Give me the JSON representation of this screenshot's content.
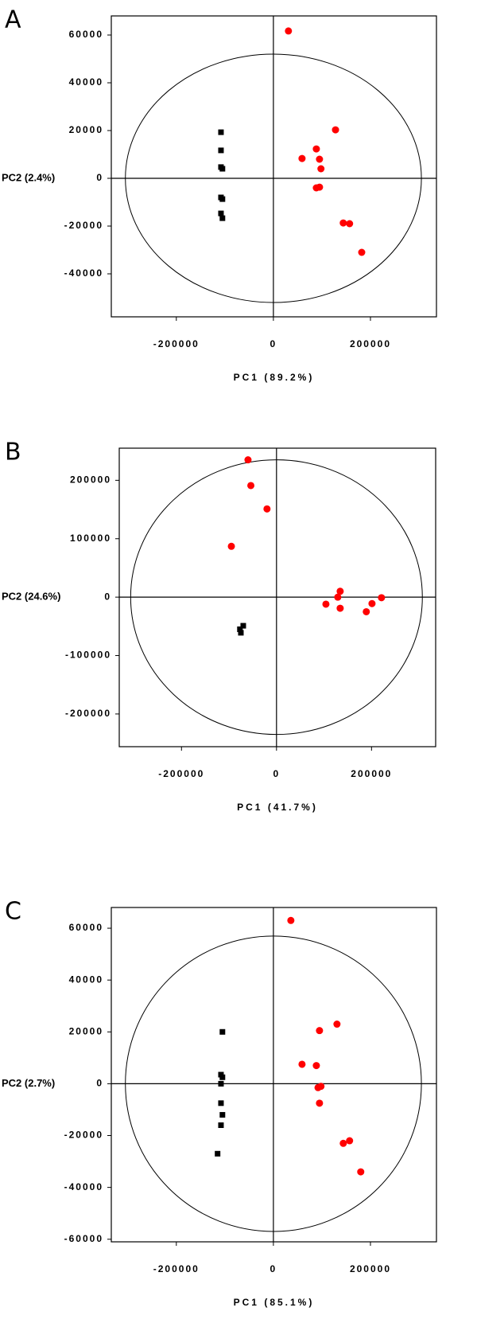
{
  "chart_data": [
    {
      "type": "scatter",
      "panel": "A",
      "xlabel": "PC1 (89.2%)",
      "ylabel": "PC2 (2.4%)",
      "xlim": [
        -334000,
        336000
      ],
      "ylim": [
        -58000,
        68000
      ],
      "xticks": [
        -200000,
        0,
        200000
      ],
      "yticks": [
        -40000,
        -20000,
        0,
        20000,
        40000,
        60000
      ],
      "ellipse": [
        305000,
        52000
      ],
      "series": [
        {
          "color": "#000000",
          "marker": "square",
          "x": [
            -108000,
            -108000,
            -108000,
            -105000,
            -108000,
            -105000,
            -108000,
            -105000
          ],
          "values": [
            19300,
            11700,
            4700,
            4000,
            -8000,
            -8700,
            -14700,
            -16700
          ]
        },
        {
          "color": "#ff0000",
          "marker": "circle",
          "x": [
            31000,
            128000,
            88500,
            59000,
            95000,
            98000,
            88500,
            95000,
            144000,
            157000,
            182000
          ],
          "values": [
            61700,
            20300,
            12300,
            8300,
            8000,
            4000,
            -4000,
            -3700,
            -18700,
            -19000,
            -31000
          ]
        }
      ]
    },
    {
      "type": "scatter",
      "panel": "B",
      "xlabel": "PC1 (41.7%)",
      "ylabel": "PC2 (24.6%)",
      "xlim": [
        -331000,
        335000
      ],
      "ylim": [
        -256000,
        255000
      ],
      "xticks": [
        -200000,
        0,
        200000
      ],
      "yticks": [
        -200000,
        -100000,
        0,
        100000,
        200000
      ],
      "ellipse": [
        307000,
        235000
      ],
      "series": [
        {
          "color": "#000000",
          "marker": "square",
          "x": [
            -70000,
            -77000,
            -75000
          ],
          "values": [
            -49000,
            -55000,
            -61000
          ]
        },
        {
          "color": "#ff0000",
          "marker": "circle",
          "x": [
            -60000,
            -54000,
            -20000,
            -95000,
            134000,
            129000,
            104000,
            134000,
            201000,
            189000,
            221000
          ],
          "values": [
            235000,
            191000,
            151000,
            87000,
            10000,
            0,
            -12000,
            -19000,
            -11000,
            -25000,
            -1000
          ]
        }
      ]
    },
    {
      "type": "scatter",
      "panel": "C",
      "xlabel": "PC1 (85.1%)",
      "ylabel": "PC2 (2.7%)",
      "xlim": [
        -334000,
        336000
      ],
      "ylim": [
        -61000,
        68000
      ],
      "xticks": [
        -200000,
        0,
        200000
      ],
      "yticks": [
        -60000,
        -40000,
        -20000,
        0,
        20000,
        40000,
        60000
      ],
      "ellipse": [
        305000,
        57000
      ],
      "series": [
        {
          "color": "#000000",
          "marker": "square",
          "x": [
            -105000,
            -108000,
            -105000,
            -108000,
            -108000,
            -105000,
            -108000,
            -115000
          ],
          "values": [
            20000,
            3500,
            2500,
            0,
            -7500,
            -12000,
            -16000,
            -27000
          ]
        },
        {
          "color": "#ff0000",
          "marker": "circle",
          "x": [
            36000,
            131000,
            95000,
            59000,
            88500,
            92000,
            98000,
            95000,
            144000,
            157000,
            180000
          ],
          "values": [
            63000,
            23000,
            20500,
            7500,
            7000,
            -1500,
            -1000,
            -7500,
            -23000,
            -22000,
            -34000
          ]
        }
      ]
    }
  ]
}
